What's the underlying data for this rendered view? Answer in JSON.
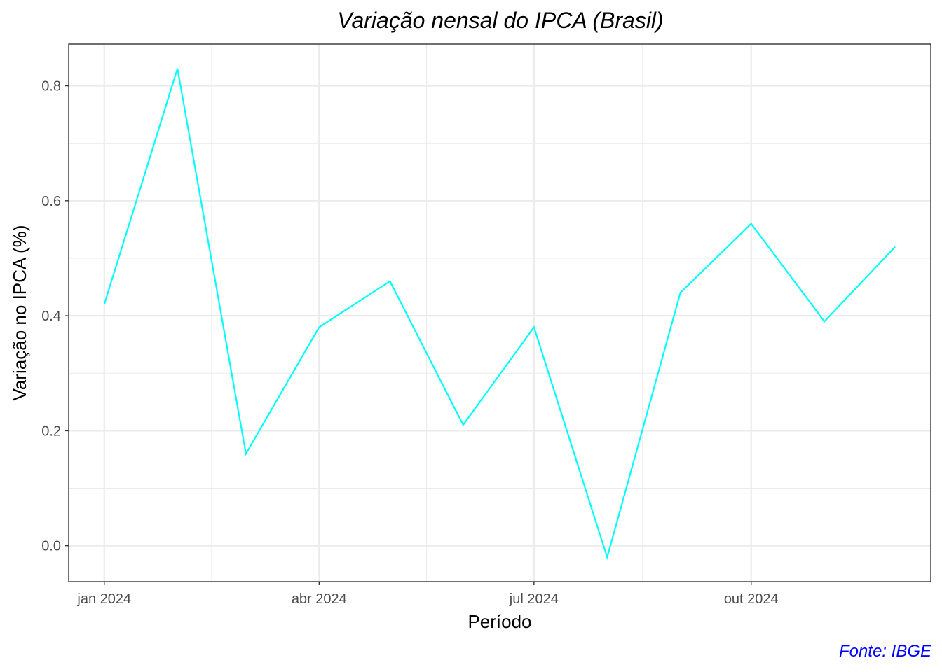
{
  "chart_data": {
    "type": "line",
    "title": "Variação nensal do IPCA (Brasil)",
    "xlabel": "Período",
    "ylabel": "Variação no IPCA (%)",
    "caption": "Fonte: IBGE",
    "x": [
      "2024-01",
      "2024-02",
      "2024-03",
      "2024-04",
      "2024-05",
      "2024-06",
      "2024-07",
      "2024-08",
      "2024-09",
      "2024-10",
      "2024-11",
      "2024-12"
    ],
    "series": [
      {
        "values": [
          0.42,
          0.83,
          0.16,
          0.38,
          0.46,
          0.21,
          0.38,
          -0.02,
          0.44,
          0.56,
          0.39,
          0.52
        ]
      }
    ],
    "x_ticks": [
      "jan 2024",
      "abr 2024",
      "jul 2024",
      "out 2024"
    ],
    "x_tick_dates": [
      "2024-01-01",
      "2024-04-01",
      "2024-07-01",
      "2024-10-01"
    ],
    "y_ticks": [
      "0.0",
      "0.2",
      "0.4",
      "0.6",
      "0.8"
    ],
    "y_tick_values": [
      0.0,
      0.2,
      0.4,
      0.6,
      0.8
    ],
    "ylim": [
      -0.0625,
      0.8725
    ],
    "grid": true,
    "colors": {
      "line": "#00ffff",
      "caption": "#0000ff",
      "grid": "#ebebeb",
      "panel_border": "#333333"
    }
  }
}
